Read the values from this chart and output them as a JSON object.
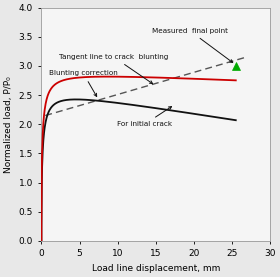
{
  "xlim": [
    0,
    30
  ],
  "ylim": [
    0.0,
    4.0
  ],
  "xlabel": "Load line displacement, mm",
  "ylabel": "Normalized load, P/P₀",
  "xticks": [
    0,
    5,
    10,
    15,
    20,
    25,
    30
  ],
  "yticks": [
    0.0,
    0.5,
    1.0,
    1.5,
    2.0,
    2.5,
    3.0,
    3.5,
    4.0
  ],
  "bg_color": "#e8e8e8",
  "axes_bg_color": "#f5f5f5",
  "annotation_color": "#111111",
  "curve_black_color": "#111111",
  "curve_red_color": "#cc0000",
  "tangent_color": "#555555",
  "final_point_color": "#00aa00",
  "black_curve_params": {
    "A": 2.62,
    "k": 1.8,
    "decay": 0.008
  },
  "red_curve_params": {
    "A": 2.92,
    "k": 1.9,
    "decay": 0.002
  },
  "tangent_x0": 0.5,
  "tangent_x1": 27.0,
  "tangent_y0": 2.15,
  "tangent_slope": 0.038,
  "final_point_x": 25.5,
  "final_point_y": 3.0
}
